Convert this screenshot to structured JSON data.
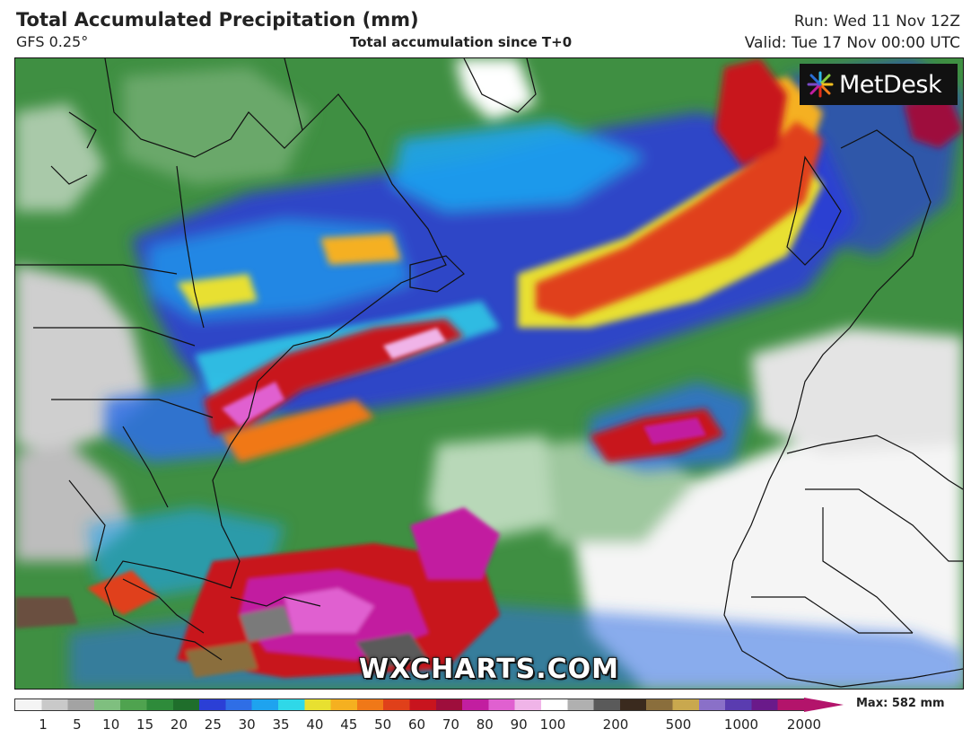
{
  "header": {
    "title": "Total Accumulated Precipitation (mm)",
    "model": "GFS 0.25°",
    "subtitle": "Total accumulation since T+0",
    "run": "Run: Wed 11 Nov 12Z",
    "valid": "Valid: Tue 17 Nov 00:00 UTC"
  },
  "branding": {
    "logo_text": "MetDesk",
    "logo_icon": "starburst-icon",
    "watermark": "WXCHARTS.COM"
  },
  "legend": {
    "max_label": "Max: 582 mm",
    "ticks": [
      "1",
      "5",
      "10",
      "15",
      "20",
      "25",
      "30",
      "35",
      "40",
      "45",
      "50",
      "60",
      "70",
      "80",
      "90",
      "100",
      "200",
      "500",
      "1000",
      "2000"
    ],
    "colors": [
      "#f4f4f4",
      "#c9c9c9",
      "#a3a3a3",
      "#7fbf7f",
      "#4fa34f",
      "#2e8b3a",
      "#1f6e2b",
      "#2b3fd6",
      "#2f6ee6",
      "#1ea3ef",
      "#2fd8e8",
      "#e8e030",
      "#f5b020",
      "#f07818",
      "#e0401a",
      "#c8141e",
      "#9e0e3c",
      "#c21ea0",
      "#e060d0",
      "#f0b4e8",
      "#ffffff",
      "#b0b0b0",
      "#5a5a5a",
      "#3a2a1e",
      "#8a6e3c",
      "#c9a84e",
      "#8a70c8",
      "#5a3cb0",
      "#6a1a8a",
      "#b3146b"
    ]
  }
}
